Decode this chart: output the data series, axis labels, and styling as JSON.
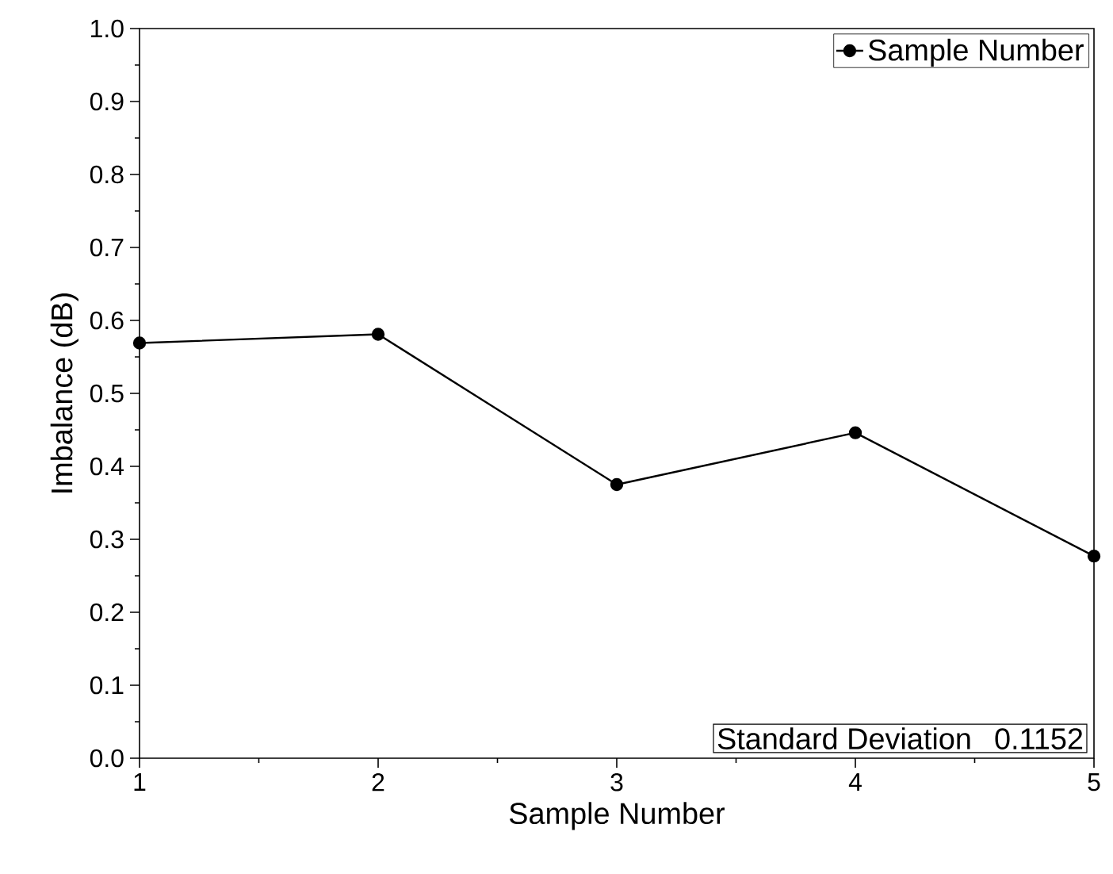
{
  "chart_data": {
    "type": "line",
    "xlabel": "Sample Number",
    "ylabel": "Imbalance (dB)",
    "x": [
      1,
      2,
      3,
      4,
      5
    ],
    "series": [
      {
        "name": "Sample Number",
        "color": "#000000",
        "values": [
          0.569,
          0.581,
          0.375,
          0.446,
          0.277
        ]
      }
    ],
    "xlim": [
      1,
      5
    ],
    "xticks": [
      1,
      2,
      3,
      4,
      5
    ],
    "ylim": [
      0,
      1
    ],
    "yticks": [
      {
        "value": 0,
        "label": "0.0"
      },
      0.1,
      0.2,
      0.3,
      0.4,
      0.5,
      0.6,
      0.7,
      0.8,
      0.9,
      {
        "value": 1,
        "label": "1.0"
      }
    ],
    "annotations": [
      "Standard Deviation",
      "0.1152"
    ],
    "legend": "top right",
    "marker": "circle",
    "line_style": "solid",
    "grid": false
  }
}
